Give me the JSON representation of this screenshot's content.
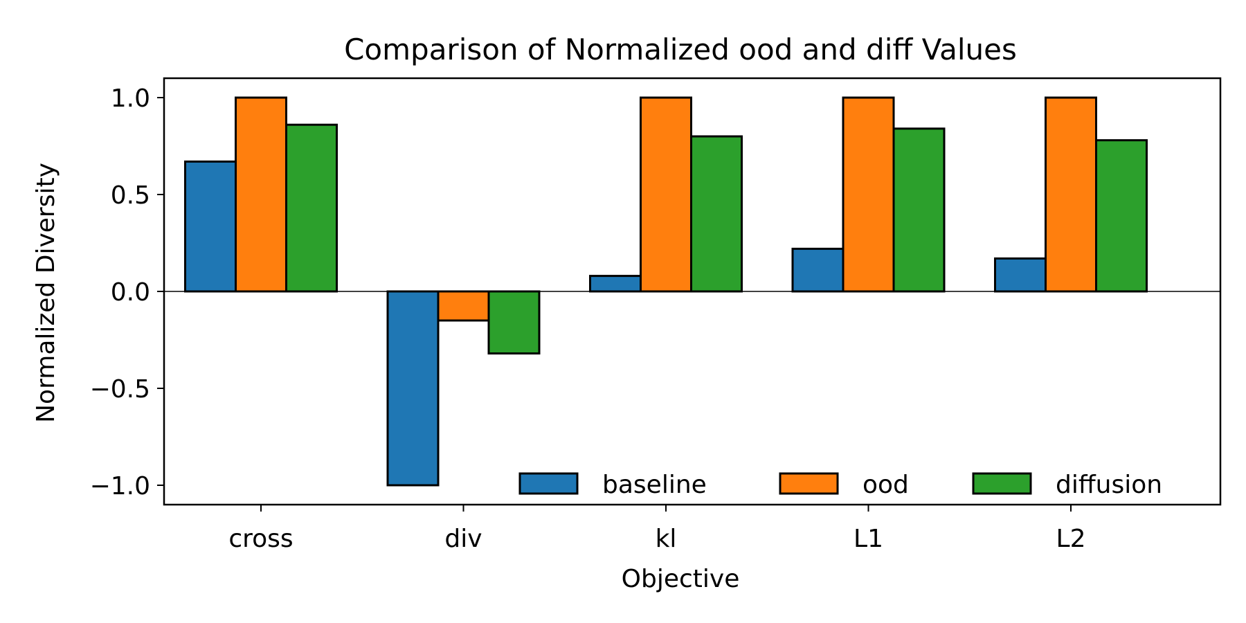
{
  "chart_data": {
    "type": "bar",
    "title": "Comparison of Normalized ood and diff Values",
    "xlabel": "Objective",
    "ylabel": "Normalized Diversity",
    "categories": [
      "cross",
      "div",
      "kl",
      "L1",
      "L2"
    ],
    "series": [
      {
        "name": "baseline",
        "color": "#1f77b4",
        "values": [
          0.67,
          -1.0,
          0.08,
          0.22,
          0.17
        ]
      },
      {
        "name": "ood",
        "color": "#ff7f0e",
        "values": [
          1.0,
          -0.15,
          1.0,
          1.0,
          1.0
        ]
      },
      {
        "name": "diffusion",
        "color": "#2ca02c",
        "values": [
          0.86,
          -0.32,
          0.8,
          0.84,
          0.78
        ]
      }
    ],
    "ylim": [
      -1.1,
      1.1
    ],
    "yticks": [
      1.0,
      0.5,
      0.0,
      -0.5,
      -1.0
    ],
    "ytick_labels": [
      "1.0",
      "0.5",
      "0.0",
      "−0.5",
      "−1.0"
    ],
    "grid": false,
    "zero_line": true,
    "legend_position": "lower-right"
  }
}
